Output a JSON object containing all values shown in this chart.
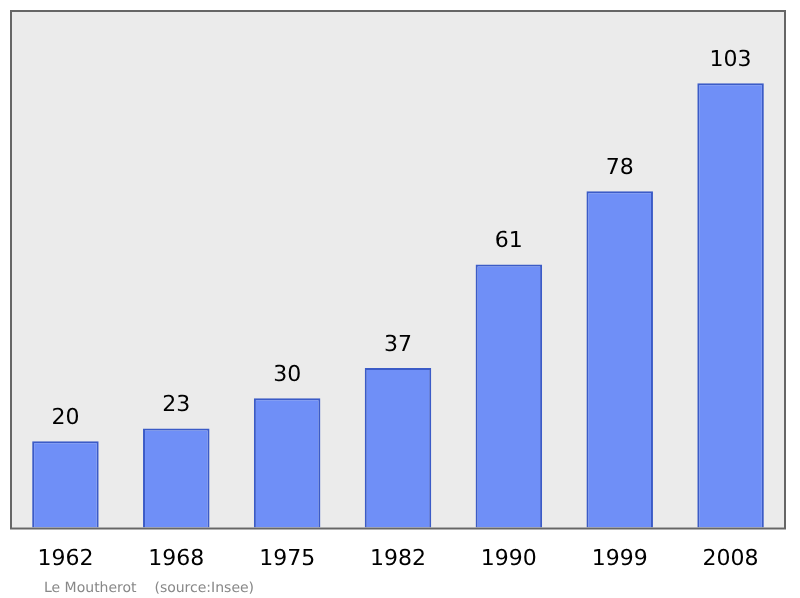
{
  "chart_data": {
    "type": "bar",
    "categories": [
      "1962",
      "1968",
      "1975",
      "1982",
      "1990",
      "1999",
      "2008"
    ],
    "values": [
      20,
      23,
      30,
      37,
      61,
      78,
      103
    ],
    "color": "#6f8ff7",
    "data_labels": true,
    "grid": false,
    "legend": false,
    "tick_labels": "x",
    "annotations": [
      "Le Moutherot    (source:Insee)"
    ]
  }
}
